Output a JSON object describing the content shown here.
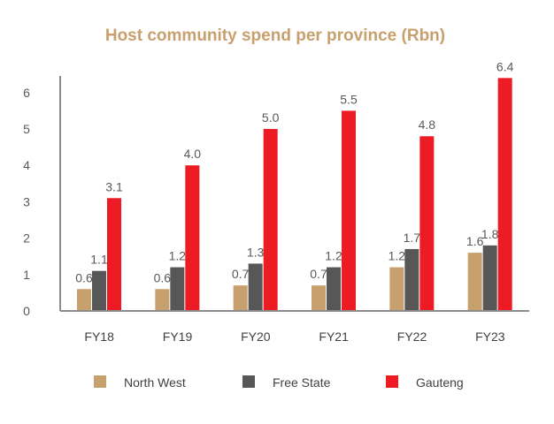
{
  "chart_data": {
    "type": "bar",
    "title": "Host community spend per province (Rbn)",
    "xlabel": "",
    "ylabel": "",
    "ylim": [
      0,
      6.4
    ],
    "yticks": [
      "0",
      "1",
      "2",
      "3",
      "4",
      "5",
      "6"
    ],
    "grid": false,
    "legend_position": "bottom",
    "categories": [
      "FY18",
      "FY19",
      "FY20",
      "FY21",
      "FY22",
      "FY23"
    ],
    "series": [
      {
        "name": "North West",
        "color": "#C8A06E",
        "values": [
          0.6,
          0.6,
          0.7,
          0.7,
          1.2,
          1.6
        ],
        "labels": [
          "0.6",
          "0.6",
          "0.7",
          "0.7",
          "1.2",
          "1.6"
        ]
      },
      {
        "name": "Free State",
        "color": "#575757",
        "values": [
          1.1,
          1.2,
          1.3,
          1.2,
          1.7,
          1.8
        ],
        "labels": [
          "1.1",
          "1.2",
          "1.3",
          "1.2",
          "1.7",
          "1.8"
        ]
      },
      {
        "name": "Gauteng",
        "color": "#ED1C24",
        "values": [
          3.1,
          4.0,
          5.0,
          5.5,
          4.8,
          6.4
        ],
        "labels": [
          "3.1",
          "4.0",
          "5.0",
          "5.5",
          "4.8",
          "6.4"
        ]
      }
    ],
    "title_color": "#C8A06E",
    "axis_color": "#8C8C8C"
  }
}
